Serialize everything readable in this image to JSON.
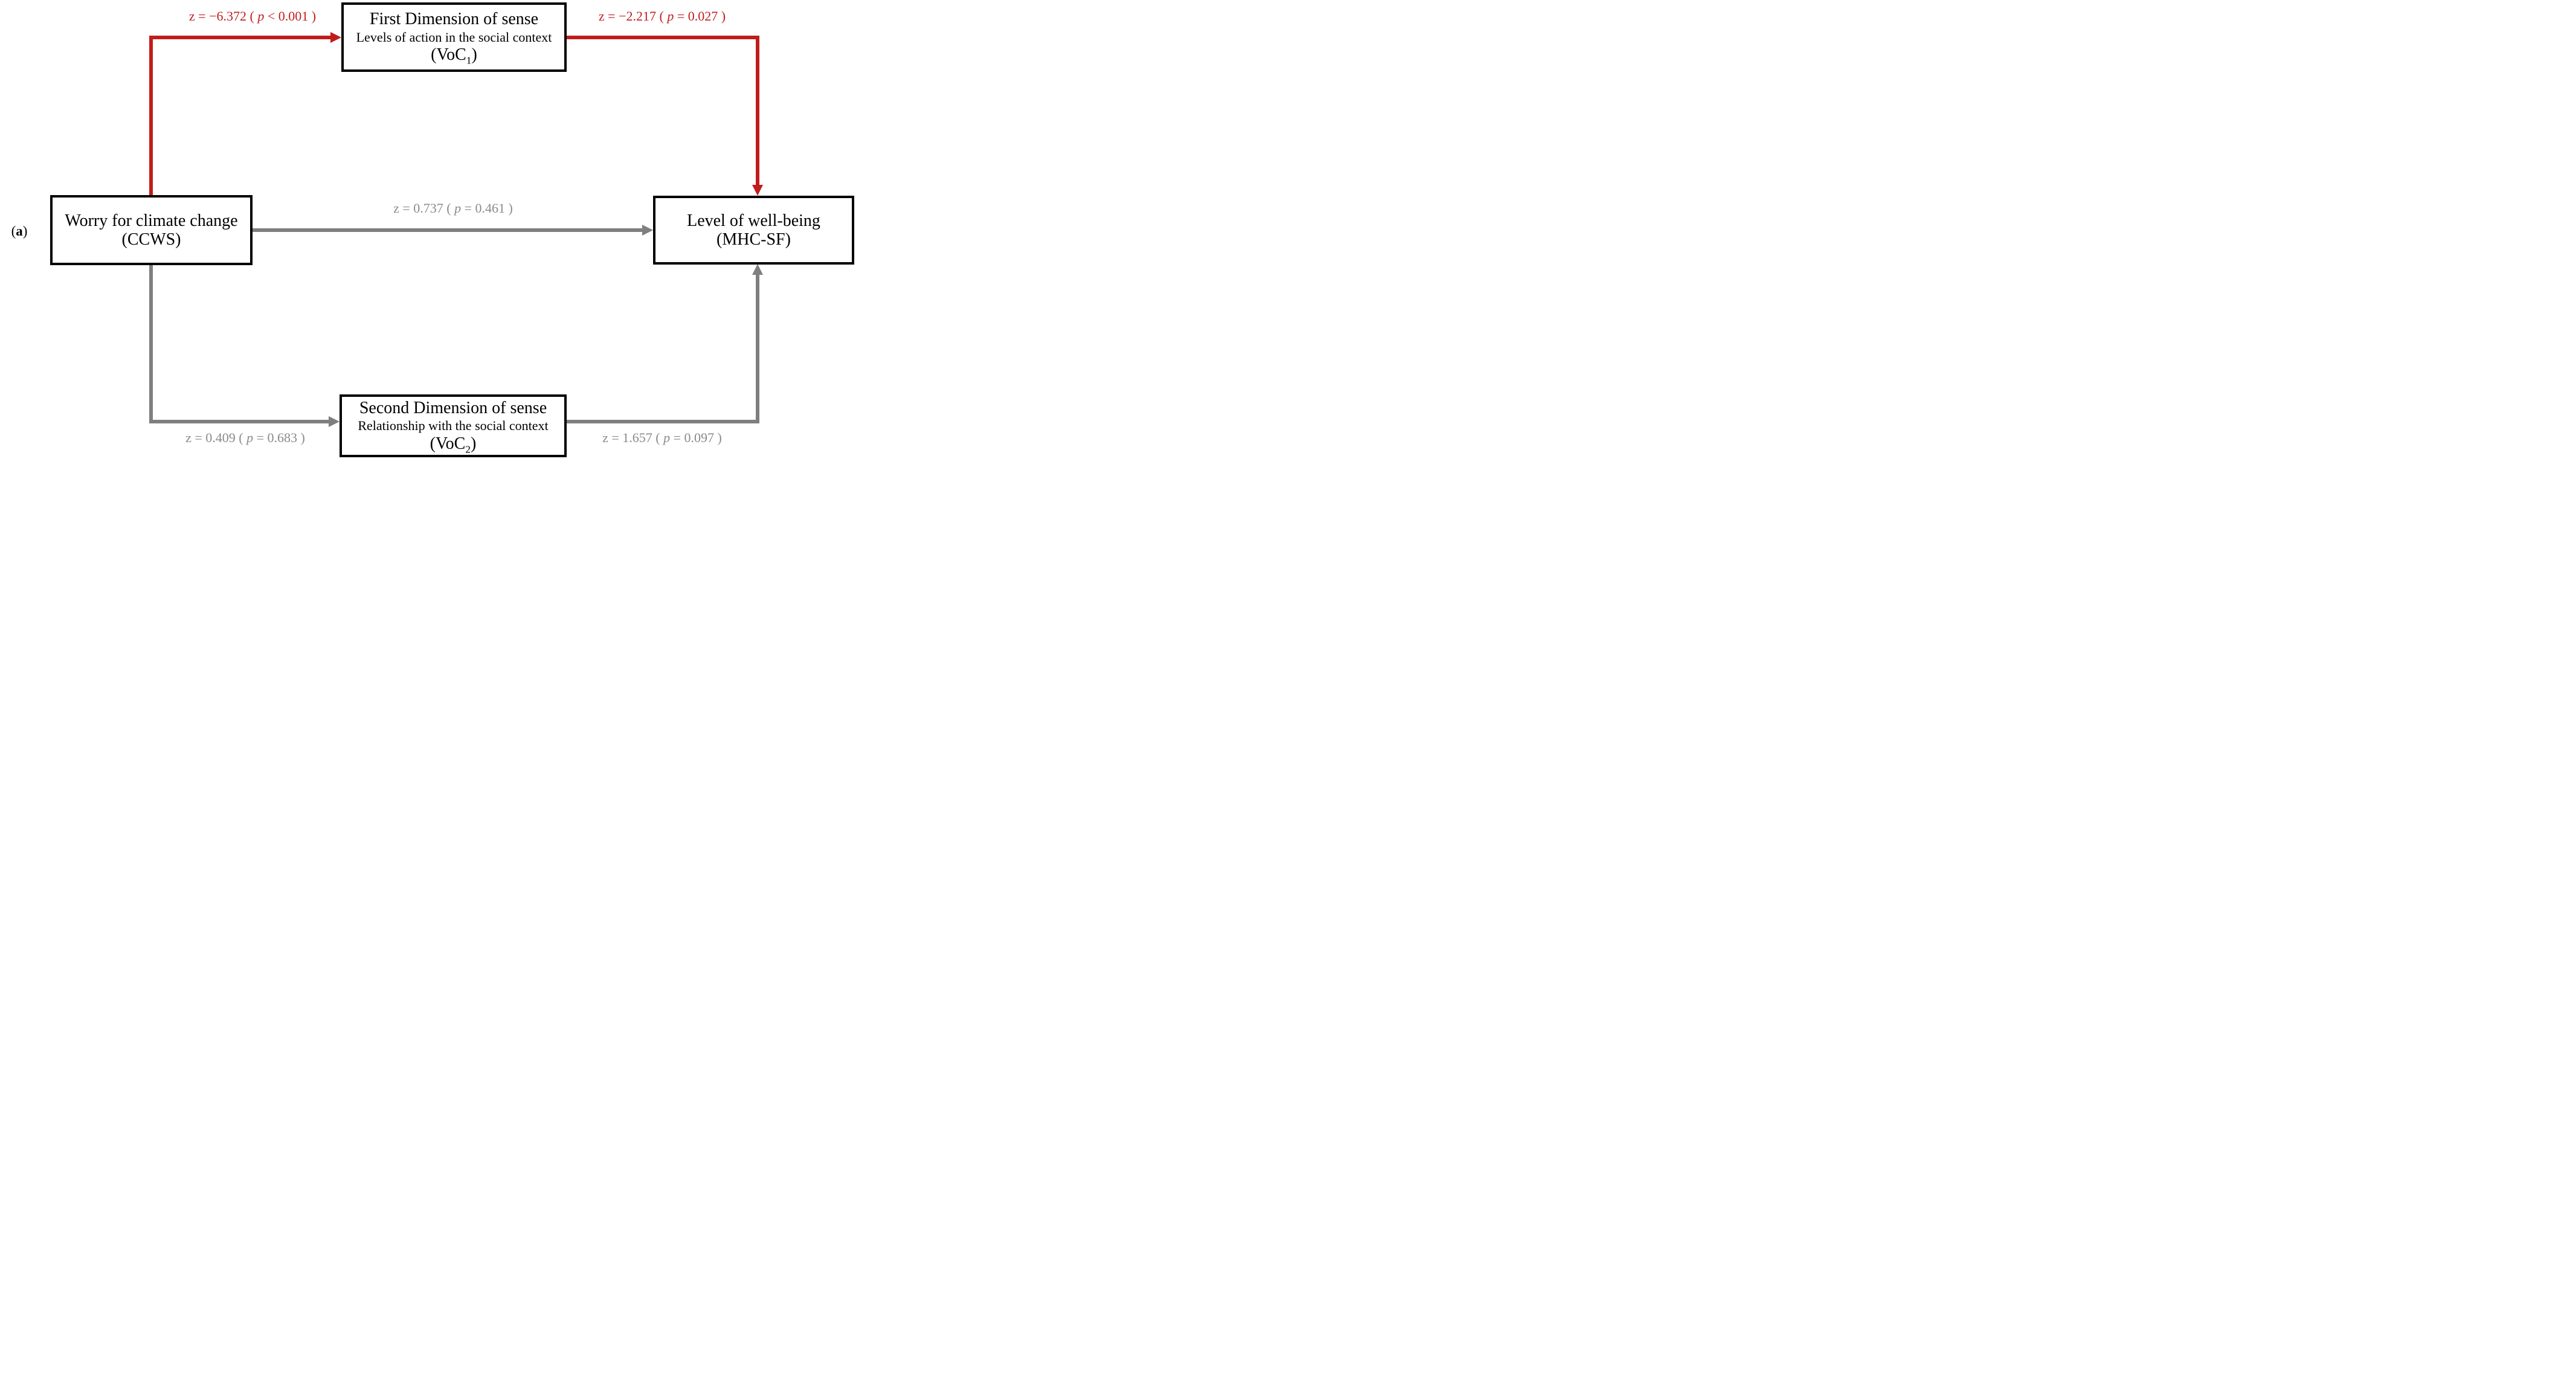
{
  "panel_label": {
    "open": "(",
    "letter": "a",
    "close": ")"
  },
  "nodes": {
    "voc1": {
      "title": "First Dimension of sense",
      "subtitle": "Levels of action in the social context",
      "acronym": {
        "pre": "(VoC",
        "sub": "1",
        "post": ")"
      }
    },
    "ccws": {
      "title": "Worry for climate change",
      "acronym": "(CCWS)"
    },
    "mhcsf": {
      "title": "Level of well-being",
      "acronym": "(MHC-SF)"
    },
    "voc2": {
      "title": "Second Dimension of sense",
      "subtitle": "Relationship with the social context",
      "acronym": {
        "pre": "(VoC",
        "sub": "2",
        "post": ")"
      }
    }
  },
  "edges": {
    "ccws_to_voc1": {
      "significant": true,
      "label": {
        "pre": "z = −6.372 ( ",
        "p": "p",
        "post": " < 0.001 )"
      }
    },
    "voc1_to_mhcsf": {
      "significant": true,
      "label": {
        "pre": "z = −2.217 ( ",
        "p": "p",
        "post": " = 0.027 )"
      }
    },
    "ccws_to_mhcsf": {
      "significant": false,
      "label": {
        "pre": "z = 0.737 ( ",
        "p": "p",
        "post": " = 0.461 )"
      }
    },
    "ccws_to_voc2": {
      "significant": false,
      "label": {
        "pre": "z = 0.409 ( ",
        "p": "p",
        "post": " = 0.683 )"
      }
    },
    "voc2_to_mhcsf": {
      "significant": false,
      "label": {
        "pre": "z = 1.657 ( ",
        "p": "p",
        "post": " = 0.097 )"
      }
    }
  },
  "colors": {
    "significant": "#c11c1c",
    "nonsignificant": "#7f7f7f",
    "nonsignificant_text": "#8a8a8a",
    "box_border": "#000000",
    "text": "#000000",
    "background": "#ffffff"
  }
}
